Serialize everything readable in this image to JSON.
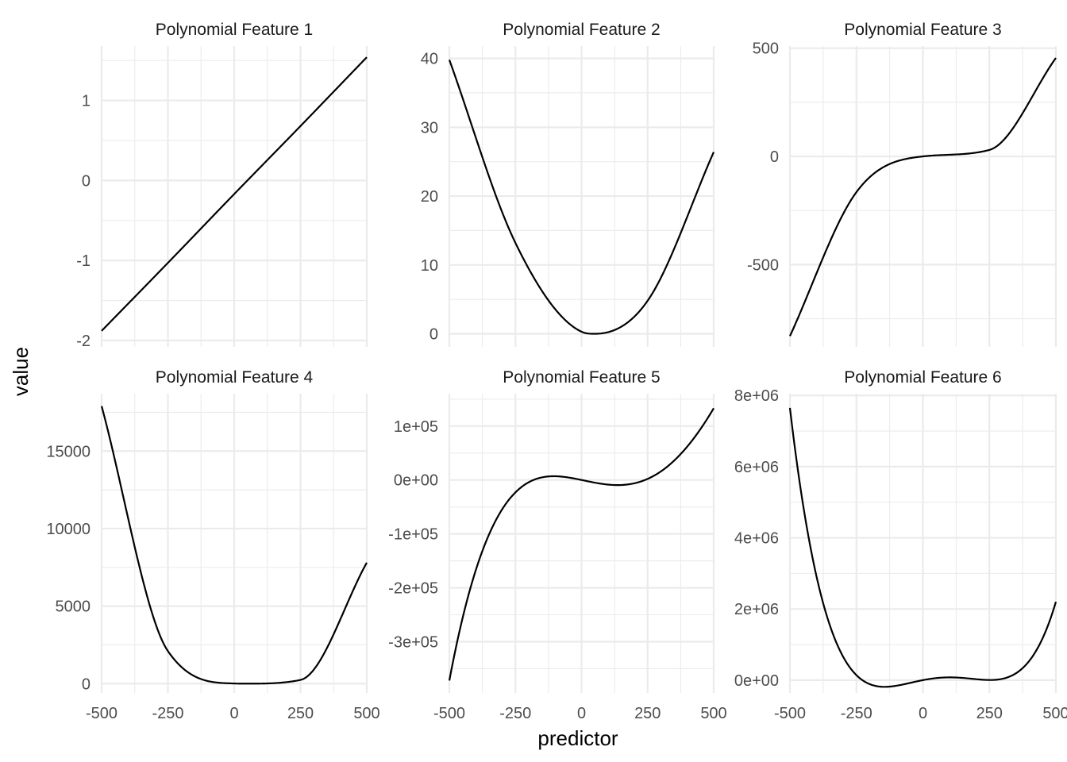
{
  "figure": {
    "xlabel": "predictor",
    "ylabel": "value",
    "line_color": "#000000",
    "grid_color": "#ebebeb",
    "background": "#ffffff"
  },
  "chart_data": [
    {
      "type": "line",
      "title": "Polynomial Feature 1",
      "degree": 1,
      "xlim": [
        -500,
        500
      ],
      "ylim": [
        -2.08,
        1.68
      ],
      "x_ticks": [
        -500,
        -250,
        0,
        250,
        500
      ],
      "x_tick_labels": [
        "-500",
        "-250",
        "0",
        "250",
        "500"
      ],
      "y_ticks": [
        -2,
        -1,
        0,
        1
      ],
      "y_tick_labels": [
        "-2",
        "-1",
        "0",
        "1"
      ],
      "x": [
        -500,
        -250,
        0,
        250,
        500
      ],
      "y": [
        -1.88,
        -1.03,
        -0.17,
        0.68,
        1.54
      ],
      "grid": true
    },
    {
      "type": "line",
      "title": "Polynomial Feature 2",
      "degree": 2,
      "xlim": [
        -500,
        500
      ],
      "ylim": [
        -1.9,
        41.8
      ],
      "x_ticks": [
        -500,
        -250,
        0,
        250,
        500
      ],
      "x_tick_labels": [
        "-500",
        "-250",
        "0",
        "250",
        "500"
      ],
      "y_ticks": [
        0,
        10,
        20,
        30,
        40
      ],
      "y_tick_labels": [
        "0",
        "10",
        "20",
        "30",
        "40"
      ],
      "x": [
        -500,
        -250,
        0,
        50,
        250,
        500
      ],
      "y": [
        39.8,
        13.2,
        0.3,
        0.0,
        4.8,
        26.4
      ],
      "grid": true
    },
    {
      "type": "line",
      "title": "Polynomial Feature 3",
      "degree": 3,
      "xlim": [
        -500,
        500
      ],
      "ylim": [
        -880,
        510
      ],
      "x_ticks": [
        -500,
        -250,
        0,
        250,
        500
      ],
      "x_tick_labels": [
        "-500",
        "-250",
        "0",
        "250",
        "500"
      ],
      "y_ticks": [
        -500,
        0,
        500
      ],
      "y_tick_labels": [
        "-500",
        "0",
        "500"
      ],
      "x": [
        -500,
        -250,
        0,
        250,
        500
      ],
      "y": [
        -830,
        -165,
        0,
        30,
        455
      ],
      "grid": true
    },
    {
      "type": "line",
      "title": "Polynomial Feature 4",
      "degree": 4,
      "xlim": [
        -500,
        500
      ],
      "ylim": [
        -600,
        18700
      ],
      "x_ticks": [
        -500,
        -250,
        0,
        250,
        500
      ],
      "x_tick_labels": [
        "-500",
        "-250",
        "0",
        "250",
        "500"
      ],
      "y_ticks": [
        0,
        5000,
        10000,
        15000
      ],
      "y_tick_labels": [
        "0",
        "5000",
        "10000",
        "15000"
      ],
      "x": [
        -500,
        -250,
        0,
        50,
        250,
        500
      ],
      "y": [
        17900,
        2100,
        10,
        0,
        240,
        7800
      ],
      "grid": true
    },
    {
      "type": "line",
      "title": "Polynomial Feature 5",
      "degree": 5,
      "xlim": [
        -500,
        500
      ],
      "ylim": [
        -395000,
        160000
      ],
      "x_ticks": [
        -500,
        -250,
        0,
        250,
        500
      ],
      "x_tick_labels": [
        "-500",
        "-250",
        "0",
        "250",
        "500"
      ],
      "y_ticks": [
        -300000,
        -200000,
        -100000,
        0,
        100000
      ],
      "y_tick_labels": [
        "-3e+05",
        "-2e+05",
        "-1e+05",
        "0e+00",
        "1e+05"
      ],
      "x": [
        -500,
        -250,
        0,
        250,
        500
      ],
      "y": [
        -372000,
        -23000,
        0,
        2000,
        133000
      ],
      "grid": true
    },
    {
      "type": "line",
      "title": "Polynomial Feature 6",
      "degree": 6,
      "xlim": [
        -500,
        500
      ],
      "ylim": [
        -360000,
        8050000
      ],
      "x_ticks": [
        -500,
        -250,
        0,
        250,
        500
      ],
      "x_tick_labels": [
        "-500",
        "-250",
        "0",
        "250",
        "500"
      ],
      "y_ticks": [
        0,
        2000000,
        4000000,
        6000000,
        8000000
      ],
      "y_tick_labels": [
        "0e+00",
        "2e+06",
        "4e+06",
        "6e+06",
        "8e+06"
      ],
      "x": [
        -500,
        -250,
        0,
        250,
        500
      ],
      "y": [
        7650000,
        140000,
        0,
        4000,
        2200000
      ],
      "grid": true
    }
  ]
}
